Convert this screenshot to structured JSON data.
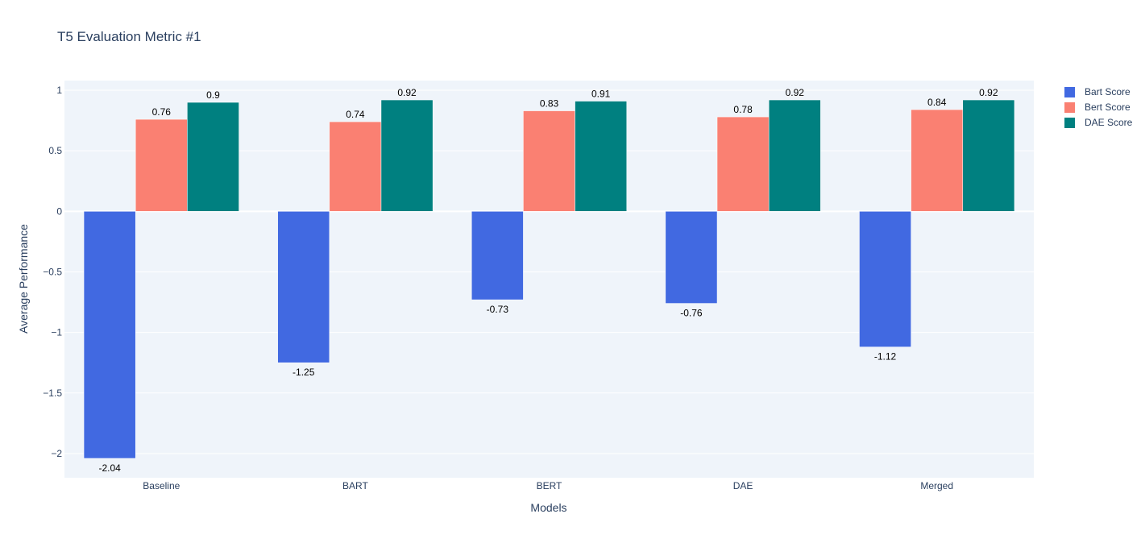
{
  "chart_data": {
    "type": "bar",
    "title": "T5 Evaluation Metric #1",
    "xlabel": "Models",
    "ylabel": "Average Performance",
    "categories": [
      "Baseline",
      "BART",
      "BERT",
      "DAE",
      "Merged"
    ],
    "ylim": [
      -2.2,
      1.08
    ],
    "yticks": [
      1,
      0.5,
      0,
      -0.5,
      -1,
      -1.5,
      -2
    ],
    "ytick_labels": [
      "1",
      "0.5",
      "0",
      "−0.5",
      "−1",
      "−1.5",
      "−2"
    ],
    "grid": true,
    "legend_position": "top-right",
    "series": [
      {
        "name": "Bart Score",
        "color": "#4169e1",
        "values": [
          -2.04,
          -1.25,
          -0.73,
          -0.76,
          -1.12
        ],
        "labels": [
          "-2.04",
          "-1.25",
          "-0.73",
          "-0.76",
          "-1.12"
        ]
      },
      {
        "name": "Bert Score",
        "color": "#fa8072",
        "values": [
          0.76,
          0.74,
          0.83,
          0.78,
          0.84
        ],
        "labels": [
          "0.76",
          "0.74",
          "0.83",
          "0.78",
          "0.84"
        ]
      },
      {
        "name": "DAE Score",
        "color": "#008080",
        "values": [
          0.9,
          0.92,
          0.91,
          0.92,
          0.92
        ],
        "labels": [
          "0.9",
          "0.92",
          "0.91",
          "0.92",
          "0.92"
        ]
      }
    ]
  }
}
